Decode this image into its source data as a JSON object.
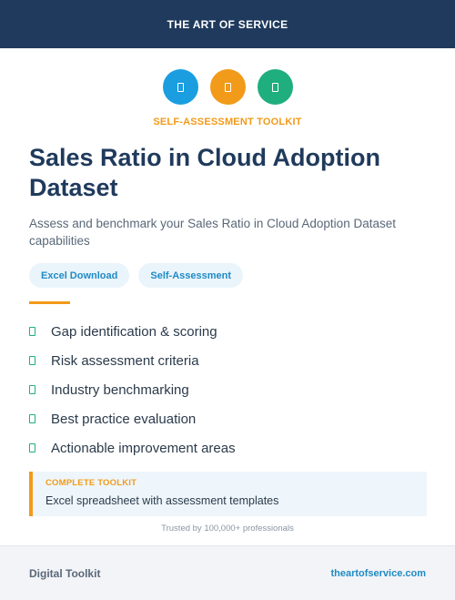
{
  "header": {
    "brand": "THE ART OF SERVICE"
  },
  "icons": [
    {
      "name": "document-icon",
      "color": "#1a9ee0"
    },
    {
      "name": "document-icon",
      "color": "#f29a1a"
    },
    {
      "name": "document-icon",
      "color": "#1fae7e"
    }
  ],
  "kicker": {
    "text": "SELF-ASSESSMENT TOOLKIT",
    "color": "#f29a1a"
  },
  "title": "Sales Ratio in Cloud Adoption Dataset",
  "subtitle": "Assess and benchmark your Sales Ratio in Cloud Adoption Dataset capabilities",
  "tags": [
    "Excel Download",
    "Self-Assessment"
  ],
  "accent_color": "#f29a1a",
  "check_color": "#1fae7e",
  "features": [
    "Gap identification & scoring",
    "Risk assessment criteria",
    "Industry benchmarking",
    "Best practice evaluation",
    "Actionable improvement areas"
  ],
  "callout": {
    "label": "COMPLETE TOOLKIT",
    "text": "Excel spreadsheet with assessment templates"
  },
  "trusted": "Trusted by 100,000+ professionals",
  "footer": {
    "left": "Digital Toolkit",
    "right": "theartofservice.com"
  }
}
